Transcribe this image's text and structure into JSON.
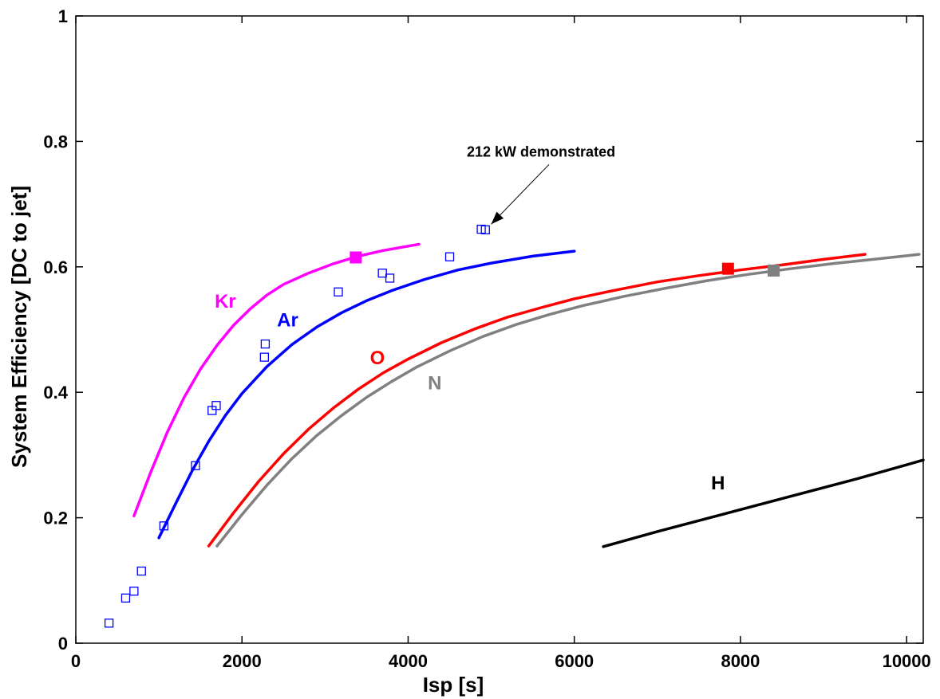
{
  "chart_data": {
    "type": "line",
    "xlabel": "Isp  [s]",
    "ylabel": "System Efficiency [DC to jet]",
    "xlim": [
      0,
      10200
    ],
    "ylim": [
      0,
      1
    ],
    "x_ticks": [
      0,
      2000,
      4000,
      6000,
      8000,
      10000
    ],
    "x_tick_labels": [
      "0",
      "2000",
      "4000",
      "6000",
      "8000",
      "10000"
    ],
    "y_ticks": [
      0,
      0.2,
      0.4,
      0.6,
      0.8,
      1
    ],
    "y_tick_labels": [
      "0",
      "0.2",
      "0.4",
      "0.6",
      "0.8",
      "1"
    ],
    "grid": false,
    "series": [
      {
        "name": "Kr",
        "color": "#ff00ff",
        "x": [
          700,
          900,
          1100,
          1300,
          1500,
          1700,
          1900,
          2100,
          2300,
          2500,
          2800,
          3100,
          3400,
          3700,
          4000,
          4130
        ],
        "y": [
          0.203,
          0.272,
          0.336,
          0.391,
          0.437,
          0.475,
          0.507,
          0.533,
          0.555,
          0.572,
          0.59,
          0.605,
          0.617,
          0.626,
          0.633,
          0.636
        ],
        "marker": {
          "x": 3370,
          "y": 0.615
        }
      },
      {
        "name": "Ar",
        "color": "#0000ff",
        "x": [
          1000,
          1200,
          1400,
          1600,
          1800,
          2000,
          2300,
          2600,
          2900,
          3200,
          3500,
          3800,
          4200,
          4600,
          5000,
          5500,
          6000
        ],
        "y": [
          0.168,
          0.222,
          0.275,
          0.322,
          0.363,
          0.398,
          0.441,
          0.476,
          0.504,
          0.527,
          0.546,
          0.562,
          0.58,
          0.595,
          0.606,
          0.617,
          0.625
        ],
        "marker": null
      },
      {
        "name": "O",
        "color": "#ff0000",
        "x": [
          1600,
          1900,
          2200,
          2500,
          2800,
          3100,
          3400,
          3700,
          4000,
          4400,
          4800,
          5200,
          5600,
          6000,
          6500,
          7000,
          7500,
          8000,
          8500,
          9000,
          9500
        ],
        "y": [
          0.155,
          0.208,
          0.258,
          0.302,
          0.341,
          0.375,
          0.405,
          0.431,
          0.453,
          0.479,
          0.501,
          0.52,
          0.535,
          0.549,
          0.563,
          0.576,
          0.586,
          0.595,
          0.603,
          0.612,
          0.62
        ],
        "marker": {
          "x": 7850,
          "y": 0.597
        }
      },
      {
        "name": "N",
        "color": "#808080",
        "x": [
          1700,
          2000,
          2300,
          2600,
          2900,
          3200,
          3500,
          3800,
          4100,
          4500,
          4900,
          5300,
          5700,
          6100,
          6600,
          7100,
          7600,
          8100,
          8600,
          9100,
          9600,
          10150
        ],
        "y": [
          0.155,
          0.205,
          0.252,
          0.294,
          0.331,
          0.363,
          0.392,
          0.417,
          0.44,
          0.466,
          0.489,
          0.508,
          0.524,
          0.538,
          0.553,
          0.566,
          0.578,
          0.588,
          0.597,
          0.605,
          0.612,
          0.62
        ],
        "marker": {
          "x": 8400,
          "y": 0.594
        }
      },
      {
        "name": "H",
        "color": "#000000",
        "x": [
          6350,
          7000,
          7800,
          8600,
          9400,
          10200
        ],
        "y": [
          0.154,
          0.178,
          0.206,
          0.234,
          0.262,
          0.292
        ],
        "marker": null
      }
    ],
    "scatter": {
      "color": "#0000ff",
      "points": [
        [
          400,
          0.032
        ],
        [
          600,
          0.072
        ],
        [
          700,
          0.083
        ],
        [
          790,
          0.115
        ],
        [
          1060,
          0.187
        ],
        [
          1440,
          0.283
        ],
        [
          1640,
          0.371
        ],
        [
          1690,
          0.379
        ],
        [
          2270,
          0.456
        ],
        [
          2280,
          0.477
        ],
        [
          3160,
          0.56
        ],
        [
          3690,
          0.59
        ],
        [
          3780,
          0.582
        ],
        [
          4500,
          0.616
        ],
        [
          4880,
          0.66
        ],
        [
          4930,
          0.659
        ]
      ]
    },
    "series_labels": [
      {
        "text": "Kr",
        "x": 1800,
        "y": 0.535,
        "color": "#ff00ff"
      },
      {
        "text": "Ar",
        "x": 2550,
        "y": 0.505,
        "color": "#0000ff"
      },
      {
        "text": "O",
        "x": 3630,
        "y": 0.445,
        "color": "#ff0000"
      },
      {
        "text": "N",
        "x": 4320,
        "y": 0.405,
        "color": "#808080"
      },
      {
        "text": "H",
        "x": 7730,
        "y": 0.245,
        "color": "#000000"
      }
    ],
    "annotations": [
      {
        "text": "212 kW demonstrated",
        "x": 5600,
        "y": 0.776,
        "arrow_to": [
          5000,
          0.668
        ]
      }
    ]
  }
}
